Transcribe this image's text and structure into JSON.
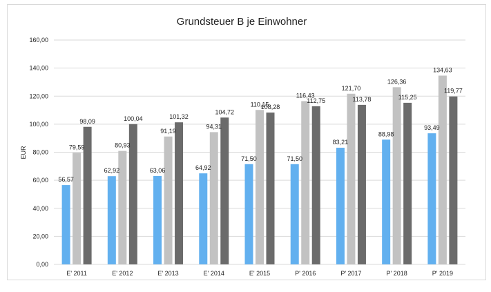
{
  "chart_data": {
    "type": "bar",
    "title": "Grundsteuer B je Einwohner",
    "xlabel": "",
    "ylabel": "EUR",
    "ylim": [
      0,
      160
    ],
    "y_ticks": [
      "0,00",
      "20,00",
      "40,00",
      "60,00",
      "80,00",
      "100,00",
      "120,00",
      "140,00",
      "160,00"
    ],
    "grid": true,
    "legend": "none",
    "categories": [
      "E' 2011",
      "E' 2012",
      "E' 2013",
      "E' 2014",
      "E' 2015",
      "P' 2016",
      "P' 2017",
      "P' 2018",
      "P' 2019"
    ],
    "series": [
      {
        "color": "#62b0ef",
        "values": [
          56.57,
          62.92,
          63.06,
          64.92,
          71.5,
          71.5,
          83.21,
          88.98,
          93.49
        ],
        "labels": [
          "56,57",
          "62,92",
          "63,06",
          "64,92",
          "71,50",
          "71,50",
          "83,21",
          "88,98",
          "93,49"
        ]
      },
      {
        "color": "#c2c2c2",
        "values": [
          79.59,
          80.93,
          91.19,
          94.31,
          110.15,
          116.43,
          121.7,
          126.36,
          134.63
        ],
        "labels": [
          "79,59",
          "80,93",
          "91,19",
          "94,31",
          "110,15",
          "116,43",
          "121,70",
          "126,36",
          "134,63"
        ]
      },
      {
        "color": "#6b6b6b",
        "values": [
          98.09,
          100.04,
          101.32,
          104.72,
          108.28,
          112.75,
          113.78,
          115.25,
          119.77
        ],
        "labels": [
          "98,09",
          "100,04",
          "101,32",
          "104,72",
          "108,28",
          "112,75",
          "113,78",
          "115,25",
          "119,77"
        ]
      }
    ]
  }
}
